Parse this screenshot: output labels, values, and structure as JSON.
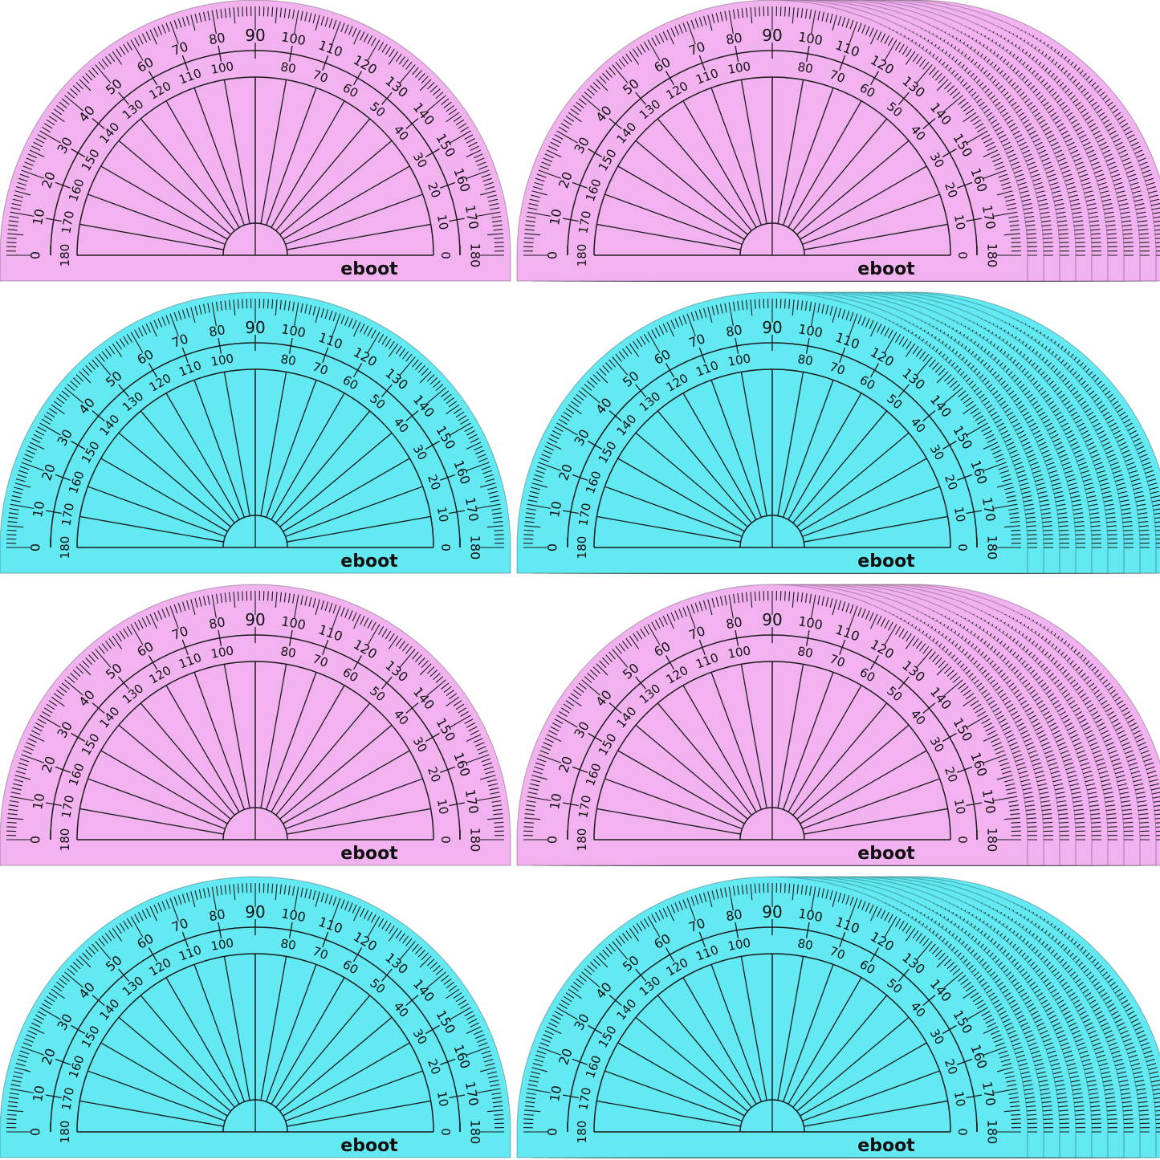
{
  "brand": "eboot",
  "colors": {
    "pink": "#f2b2f0",
    "cyan": "#62e9f2",
    "ink": "#1a1a1a"
  },
  "outer_scale": [
    "0",
    "10",
    "20",
    "30",
    "40",
    "50",
    "60",
    "70",
    "80",
    "90",
    "100",
    "110",
    "120",
    "130",
    "140",
    "150",
    "160",
    "170",
    "180"
  ],
  "inner_scale": [
    "180",
    "170",
    "160",
    "150",
    "140",
    "130",
    "120",
    "110",
    "100",
    "90",
    "80",
    "70",
    "60",
    "50",
    "40",
    "30",
    "20",
    "10",
    "0"
  ],
  "protractors": [
    {
      "color": "pink",
      "stacked": false
    },
    {
      "color": "pink",
      "stacked": true
    },
    {
      "color": "cyan",
      "stacked": false
    },
    {
      "color": "cyan",
      "stacked": true
    },
    {
      "color": "pink",
      "stacked": false
    },
    {
      "color": "pink",
      "stacked": true
    },
    {
      "color": "cyan",
      "stacked": false
    },
    {
      "color": "cyan",
      "stacked": true
    }
  ]
}
